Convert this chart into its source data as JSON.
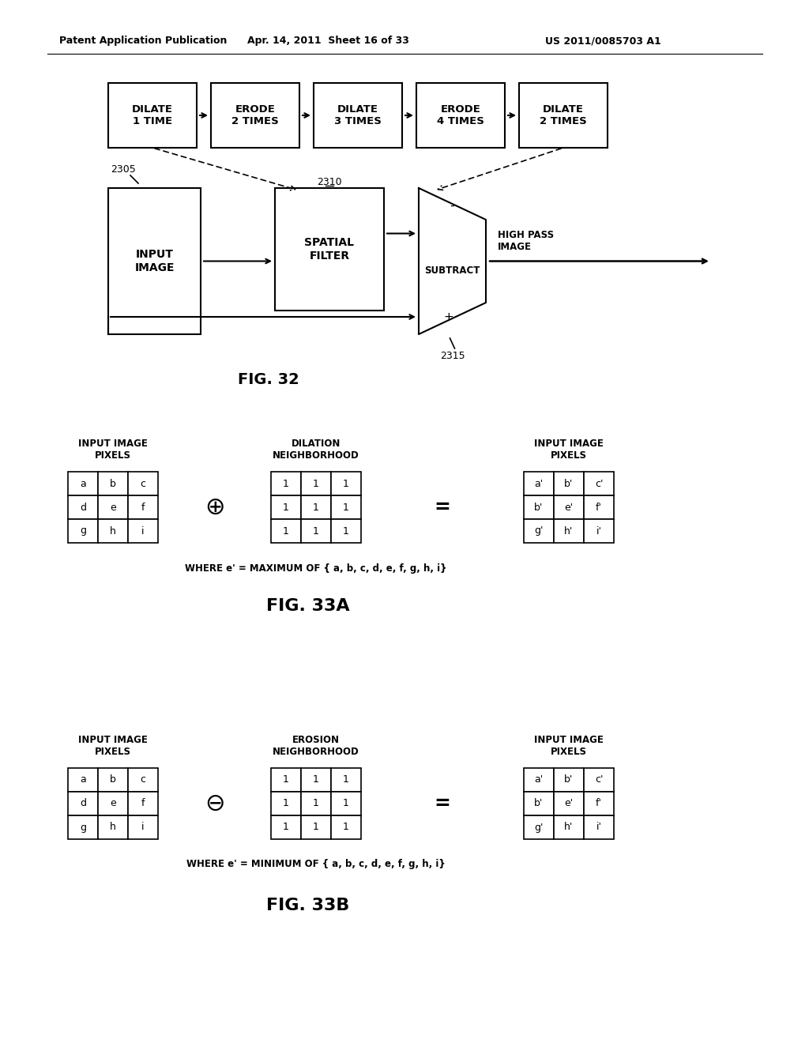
{
  "header_left": "Patent Application Publication",
  "header_mid": "Apr. 14, 2011  Sheet 16 of 33",
  "header_right": "US 2011/0085703 A1",
  "fig32_label": "FIG. 32",
  "fig33a_label": "FIG. 33A",
  "fig33b_label": "FIG. 33B",
  "top_boxes": [
    "DILATE\n1 TIME",
    "ERODE\n2 TIMES",
    "DILATE\n3 TIMES",
    "ERODE\n4 TIMES",
    "DILATE\n2 TIMES"
  ],
  "label_2305": "2305",
  "label_2310": "2310",
  "label_2315": "2315",
  "spatial_filter_label": "SPATIAL\nFILTER",
  "input_image_label": "INPUT\nIMAGE",
  "subtract_label": "SUBTRACT",
  "high_pass_label": "HIGH PASS\nIMAGE",
  "dilation_title": "DILATION\nNEIGHBORHOOD",
  "erosion_title": "EROSION\nNEIGHBORHOOD",
  "input_pixels_title": "INPUT IMAGE\nPIXELS",
  "output_pixels_title": "INPUT IMAGE\nPIXELS",
  "grid_values": [
    [
      "a",
      "b",
      "c"
    ],
    [
      "d",
      "e",
      "f"
    ],
    [
      "g",
      "h",
      "i"
    ]
  ],
  "neighborhood_values": [
    [
      "1",
      "1",
      "1"
    ],
    [
      "1",
      "1",
      "1"
    ],
    [
      "1",
      "1",
      "1"
    ]
  ],
  "output_values_dilation": [
    [
      "a'",
      "b'",
      "c'"
    ],
    [
      "b'",
      "e'",
      "f'"
    ],
    [
      "g'",
      "h'",
      "i'"
    ]
  ],
  "output_values_erosion": [
    [
      "a'",
      "b'",
      "c'"
    ],
    [
      "b'",
      "e'",
      "f'"
    ],
    [
      "g'",
      "h'",
      "i'"
    ]
  ],
  "where_dilation": "WHERE e' = MAXIMUM OF { a, b, c, d, e, f, g, h, i}",
  "where_erosion": "WHERE e' = MINIMUM OF { a, b, c, d, e, f, g, h, i}",
  "bg_color": "#ffffff"
}
